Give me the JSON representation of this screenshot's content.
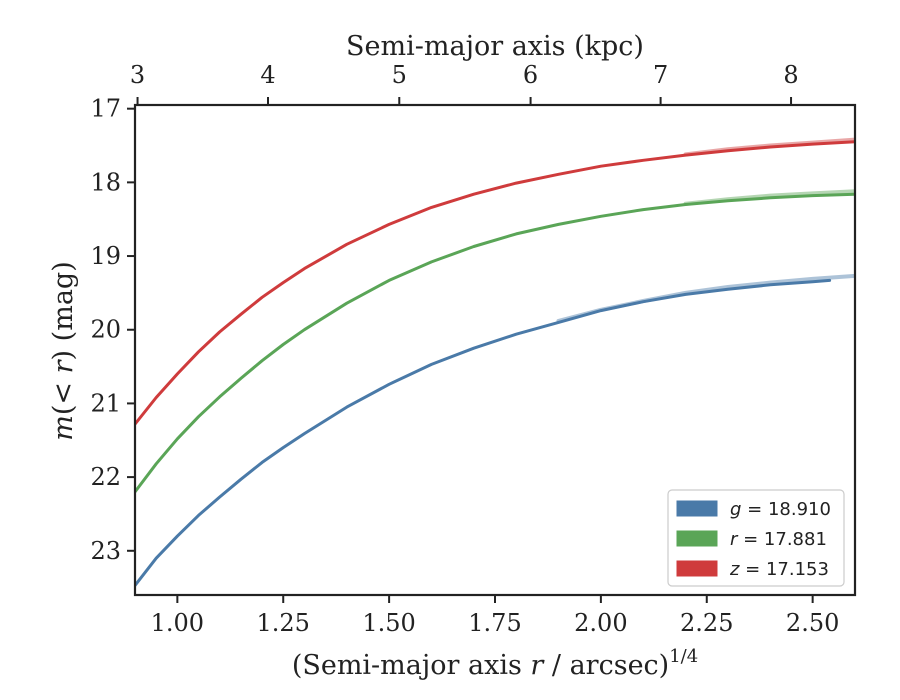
{
  "chart_data": {
    "type": "line",
    "xlabel_prefix": "(Semi-major axis ",
    "xlabel_var": "r",
    "xlabel_suffix": " / arcsec)",
    "xlabel_sup": "1/4",
    "ylabel_pre": "m",
    "ylabel_mid": "(< ",
    "ylabel_var": "r",
    "ylabel_post": ") (mag)",
    "top_xlabel": "Semi-major axis (kpc)",
    "xlim": [
      0.9,
      2.6
    ],
    "ylim": [
      23.6,
      16.95
    ],
    "y_inverted": true,
    "x_ticks": [
      1.0,
      1.25,
      1.5,
      1.75,
      2.0,
      2.25,
      2.5
    ],
    "x_tick_labels": [
      "1.00",
      "1.25",
      "1.50",
      "1.75",
      "2.00",
      "2.25",
      "2.50"
    ],
    "y_ticks": [
      17,
      18,
      19,
      20,
      21,
      22,
      23
    ],
    "y_tick_labels": [
      "17",
      "18",
      "19",
      "20",
      "21",
      "22",
      "23"
    ],
    "top_ticks_x": [
      0.906,
      1.214,
      1.524,
      1.834,
      2.141,
      2.449
    ],
    "top_tick_labels": [
      "3",
      "4",
      "5",
      "6",
      "7",
      "8"
    ],
    "legend_position": "lower-right",
    "series": [
      {
        "name": "g = 18.910",
        "legend_var": "g",
        "legend_value": "= 18.910",
        "color": "#4a7aa8",
        "x": [
          0.9,
          0.95,
          1.0,
          1.05,
          1.1,
          1.15,
          1.2,
          1.25,
          1.3,
          1.4,
          1.5,
          1.6,
          1.7,
          1.8,
          1.9,
          2.0,
          2.1,
          2.2,
          2.3,
          2.4,
          2.5,
          2.54
        ],
        "y": [
          23.47,
          23.1,
          22.8,
          22.52,
          22.27,
          22.03,
          21.8,
          21.6,
          21.41,
          21.05,
          20.74,
          20.47,
          20.25,
          20.06,
          19.9,
          19.74,
          19.62,
          19.52,
          19.45,
          19.39,
          19.35,
          19.33
        ],
        "model_x": [
          1.9,
          2.0,
          2.1,
          2.2,
          2.3,
          2.4,
          2.5,
          2.6
        ],
        "model_y": [
          19.88,
          19.73,
          19.61,
          19.5,
          19.42,
          19.36,
          19.31,
          19.27
        ]
      },
      {
        "name": "r = 17.881",
        "legend_var": "r",
        "legend_value": "= 17.881",
        "color": "#5aa557",
        "x": [
          0.9,
          0.95,
          1.0,
          1.05,
          1.1,
          1.15,
          1.2,
          1.25,
          1.3,
          1.4,
          1.5,
          1.6,
          1.7,
          1.8,
          1.9,
          2.0,
          2.1,
          2.2,
          2.3,
          2.4,
          2.5,
          2.6
        ],
        "y": [
          22.2,
          21.82,
          21.48,
          21.18,
          20.91,
          20.66,
          20.42,
          20.2,
          20.0,
          19.64,
          19.33,
          19.08,
          18.87,
          18.7,
          18.57,
          18.46,
          18.37,
          18.3,
          18.25,
          18.21,
          18.18,
          18.16
        ],
        "model_x": [
          2.2,
          2.3,
          2.4,
          2.5,
          2.6
        ],
        "model_y": [
          18.29,
          18.23,
          18.18,
          18.15,
          18.12
        ]
      },
      {
        "name": "z = 17.153",
        "legend_var": "z",
        "legend_value": "= 17.153",
        "color": "#cf3b3c",
        "x": [
          0.9,
          0.95,
          1.0,
          1.05,
          1.1,
          1.15,
          1.2,
          1.25,
          1.3,
          1.4,
          1.5,
          1.6,
          1.7,
          1.8,
          1.9,
          2.0,
          2.1,
          2.2,
          2.3,
          2.4,
          2.5,
          2.6
        ],
        "y": [
          21.28,
          20.92,
          20.6,
          20.3,
          20.03,
          19.79,
          19.56,
          19.36,
          19.17,
          18.84,
          18.57,
          18.34,
          18.16,
          18.01,
          17.89,
          17.78,
          17.7,
          17.63,
          17.57,
          17.52,
          17.48,
          17.45
        ],
        "model_x": [
          2.2,
          2.3,
          2.4,
          2.5,
          2.6
        ],
        "model_y": [
          17.62,
          17.55,
          17.5,
          17.46,
          17.42
        ]
      }
    ]
  }
}
